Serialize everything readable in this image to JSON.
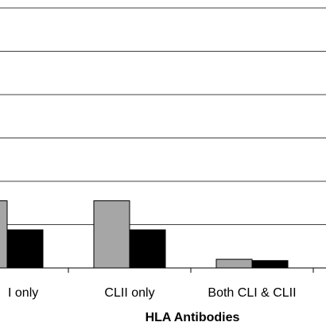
{
  "chart_data": {
    "type": "bar",
    "categories": [
      "CLI only",
      "CLII only",
      "Both CLI & CLII"
    ],
    "category_tick_labels": [
      "I only",
      "CLII only",
      "Both CLI & CLII"
    ],
    "xlabel": "HLA Antibodies",
    "ylabel": "",
    "title": "",
    "ylim": [
      0,
      6
    ],
    "grid": true,
    "series": [
      {
        "color": "#a6a6a6",
        "values": [
          1.55,
          1.55,
          0.2
        ]
      },
      {
        "color": "#000000",
        "values": [
          0.88,
          0.88,
          0.17
        ]
      }
    ]
  }
}
